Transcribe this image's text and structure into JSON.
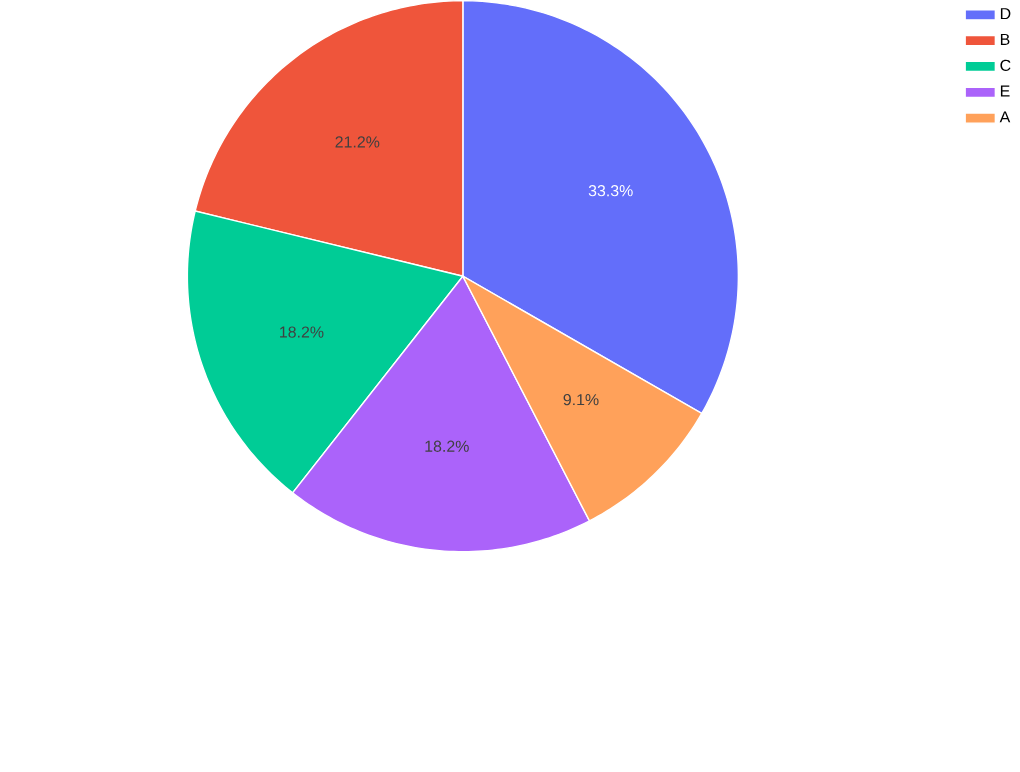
{
  "chart_data": {
    "type": "pie",
    "categories": [
      "D",
      "B",
      "C",
      "E",
      "A"
    ],
    "values": [
      33.3,
      21.2,
      18.2,
      18.2,
      9.1
    ],
    "colors": [
      "#636efa",
      "#ef553b",
      "#00cc96",
      "#ab63fa",
      "#ffa15a"
    ],
    "value_labels": [
      "33.3%",
      "21.2%",
      "18.2%",
      "18.2%",
      "9.1%"
    ],
    "legend": "top right"
  }
}
